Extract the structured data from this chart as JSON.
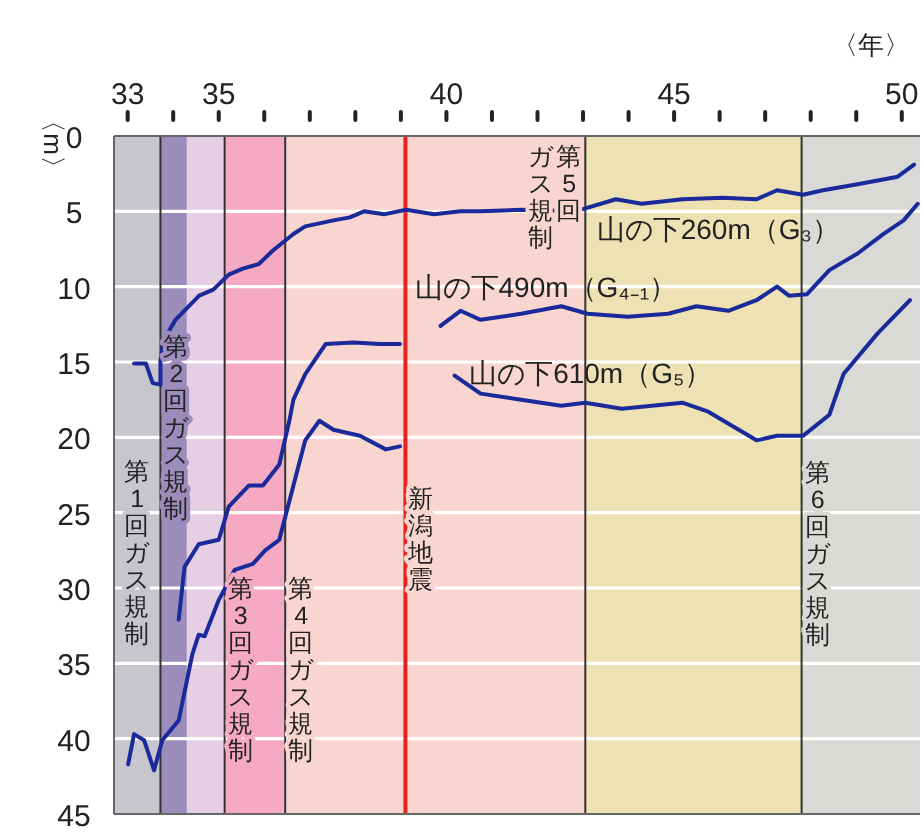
{
  "chart_data": {
    "type": "line",
    "ylabel": "〈m〉",
    "xlabel": "〈年〉",
    "xlim": [
      32.7,
      50.4
    ],
    "ylim": [
      45,
      0
    ],
    "xticks": [
      33,
      {
        "value": 34,
        "label": null
      },
      35,
      {
        "value": 36,
        "label": null
      },
      {
        "value": 37,
        "label": null
      },
      {
        "value": 38,
        "label": null
      },
      {
        "value": 39,
        "label": null
      },
      40,
      {
        "value": 41,
        "label": null
      },
      {
        "value": 42,
        "label": null
      },
      {
        "value": 43,
        "label": null
      },
      {
        "value": 44,
        "label": null
      },
      45,
      {
        "value": 46,
        "label": null
      },
      {
        "value": 47,
        "label": null
      },
      {
        "value": 48,
        "label": null
      },
      {
        "value": 49,
        "label": null
      },
      50
    ],
    "yticks": [
      0,
      5,
      10,
      15,
      20,
      25,
      30,
      35,
      40,
      45
    ],
    "grid": "y",
    "legend": false,
    "bands": [
      {
        "axis": "x",
        "from": 32.7,
        "to": 33.72,
        "color": "#c6c6cc",
        "label": "第1回ガス規制"
      },
      {
        "axis": "x",
        "from": 33.72,
        "to": 34.3,
        "color": "#9c8cbc"
      },
      {
        "axis": "x",
        "from": 34.3,
        "to": 35.13,
        "color": "#e6cfe4"
      },
      {
        "axis": "x",
        "from": 35.13,
        "to": 36.46,
        "color": "#f6a9c2"
      },
      {
        "axis": "x",
        "from": 36.46,
        "to": 43.05,
        "color": "#f9d5cf"
      },
      {
        "axis": "x",
        "from": 43.05,
        "to": 47.8,
        "color": "#eee1b3"
      },
      {
        "axis": "x",
        "from": 47.8,
        "to": 50.4,
        "color": "#d9d9d6"
      }
    ],
    "ref_lines": [
      {
        "axis": "x",
        "value": 33.72,
        "label": "第2回ガス規制",
        "color": "#333333"
      },
      {
        "axis": "x",
        "value": 35.13,
        "label": "第3回ガス規制",
        "color": "#333333"
      },
      {
        "axis": "x",
        "value": 36.46,
        "label": "第4回ガス規制",
        "color": "#333333"
      },
      {
        "axis": "x",
        "value": 39.1,
        "label": "新潟地震",
        "color": "#e82020"
      },
      {
        "axis": "x",
        "value": 43.05,
        "label": "第5回ガス規制",
        "color": "#333333"
      },
      {
        "axis": "x",
        "value": 47.8,
        "label": "第6回ガス規制",
        "color": "#333333"
      }
    ],
    "series": [
      {
        "name": "山の下260m（G₃）",
        "color": "#1a2a9a",
        "x": [
          33.14,
          33.4,
          33.55,
          33.72,
          33.72,
          33.8,
          34.05,
          34.57,
          34.88,
          35.22,
          35.53,
          35.88,
          36.19,
          36.64,
          36.9,
          37.52,
          37.88,
          38.19,
          38.63,
          39.11,
          39.73,
          40.31,
          40.75,
          41.64,
          42.83,
          43.72,
          44.29,
          45.18,
          46.06,
          46.81,
          47.26,
          47.83,
          48.27,
          49.03,
          49.91,
          50.27
        ],
        "values": [
          15.1,
          15.1,
          16.4,
          16.5,
          14.9,
          13.5,
          12.2,
          10.6,
          10.2,
          9.2,
          8.8,
          8.5,
          7.6,
          6.5,
          6.0,
          5.6,
          5.4,
          5.0,
          5.2,
          4.9,
          5.2,
          5.0,
          5.0,
          4.9,
          5.0,
          4.2,
          4.5,
          4.2,
          4.1,
          4.2,
          3.6,
          3.9,
          3.6,
          3.2,
          2.7,
          1.9
        ]
      },
      {
        "name": "山の下490m（G₄₋₁）",
        "color": "#1a2a9a",
        "x": [
          39.87,
          40.31,
          40.75,
          41.64,
          42.52,
          43.1,
          43.98,
          44.87,
          45.49,
          46.19,
          46.81,
          47.26,
          47.52,
          47.92,
          48.41,
          49.03,
          49.6,
          50.04,
          50.35
        ],
        "values": [
          12.6,
          11.6,
          12.2,
          11.8,
          11.3,
          11.8,
          12.0,
          11.8,
          11.3,
          11.6,
          10.9,
          10.0,
          10.6,
          10.5,
          8.9,
          7.8,
          6.5,
          5.6,
          4.5
        ]
      },
      {
        "name": "山の下610m（G₅）",
        "color": "#1a2a9a",
        "x": [
          40.18,
          40.75,
          41.64,
          42.52,
          43.05,
          43.85,
          45.18,
          45.75,
          46.81,
          47.26,
          47.83,
          48.41,
          48.72,
          49.47,
          50.18
        ],
        "values": [
          15.9,
          17.1,
          17.5,
          17.9,
          17.7,
          18.1,
          17.7,
          18.3,
          20.2,
          19.9,
          19.9,
          18.5,
          15.8,
          13.1,
          10.9
        ]
      },
      {
        "color": "#1a2a9a",
        "x": [
          34.12,
          34.25,
          34.56,
          35.0,
          35.22,
          35.66,
          35.97,
          36.33,
          36.55,
          36.64,
          36.9,
          37.35,
          37.96,
          38.54,
          38.98
        ],
        "values": [
          32.1,
          28.6,
          27.1,
          26.8,
          24.6,
          23.2,
          23.2,
          21.8,
          18.9,
          17.5,
          15.8,
          13.8,
          13.7,
          13.8,
          13.8
        ]
      },
      {
        "color": "#1a2a9a",
        "x": [
          33.01,
          33.14,
          33.36,
          33.58,
          33.76,
          34.12,
          34.42,
          34.56,
          34.69,
          35.0,
          35.35,
          35.75,
          36.02,
          36.33,
          36.64,
          36.9,
          37.21,
          37.52,
          38.1,
          38.67,
          38.98
        ],
        "values": [
          41.7,
          39.7,
          40.1,
          42.1,
          40.1,
          38.8,
          34.4,
          33.1,
          33.2,
          30.8,
          28.8,
          28.4,
          27.5,
          26.8,
          23.2,
          20.2,
          18.9,
          19.5,
          19.9,
          20.8,
          20.6
        ]
      }
    ]
  }
}
